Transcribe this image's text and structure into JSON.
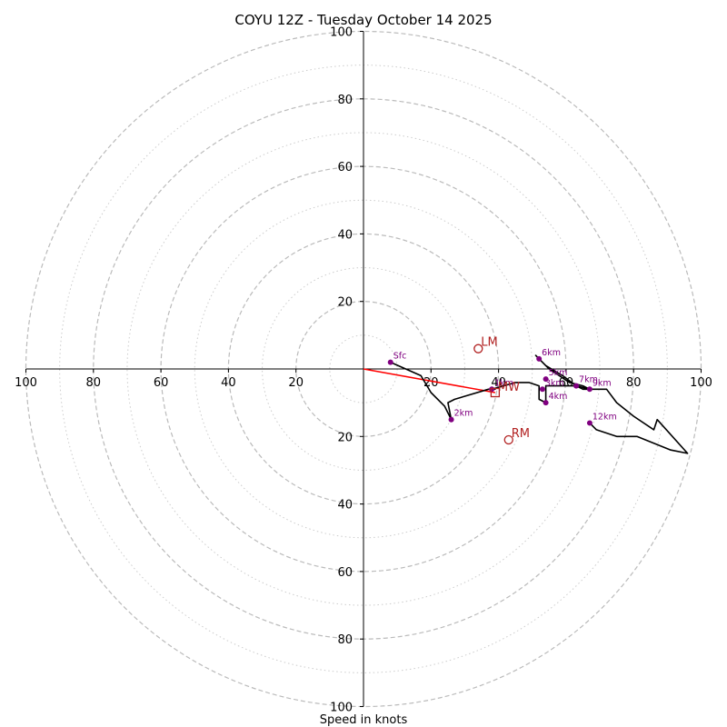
{
  "chart_data": {
    "type": "hodograph",
    "title": "COYU 12Z - Tuesday October 14 2025",
    "xlabel": "Speed in knots",
    "ylim": [
      -100,
      100
    ],
    "xlim": [
      -100,
      100
    ],
    "ring_values": [
      20,
      40,
      60,
      80,
      100
    ],
    "minor_ring_values": [
      10,
      30,
      50,
      70,
      90
    ],
    "x_tick_labels": [
      "100",
      "80",
      "60",
      "40",
      "20",
      "20",
      "40",
      "60",
      "80",
      "100"
    ],
    "x_tick_values": [
      -100,
      -80,
      -60,
      -40,
      -20,
      20,
      40,
      60,
      80,
      100
    ],
    "y_tick_labels": [
      "100",
      "80",
      "60",
      "40",
      "20",
      "20",
      "40",
      "60",
      "80",
      "100"
    ],
    "y_tick_values": [
      100,
      80,
      60,
      40,
      20,
      -20,
      -40,
      -60,
      -80,
      -100
    ],
    "trace": [
      [
        8,
        2
      ],
      [
        17,
        -2
      ],
      [
        20,
        -7
      ],
      [
        24,
        -11
      ],
      [
        26,
        -15
      ],
      [
        25,
        -10
      ],
      [
        27,
        -9
      ],
      [
        37,
        -6
      ],
      [
        39,
        -6
      ],
      [
        38,
        -6
      ],
      [
        45,
        -4
      ],
      [
        49,
        -4
      ],
      [
        52,
        -5
      ],
      [
        52,
        -9
      ],
      [
        54,
        -10
      ],
      [
        54,
        -7
      ],
      [
        54,
        -5
      ],
      [
        60,
        -5
      ],
      [
        63,
        -5
      ],
      [
        65,
        -6
      ],
      [
        67,
        -6
      ],
      [
        65,
        -5
      ],
      [
        61,
        -4
      ],
      [
        58,
        -2
      ],
      [
        55,
        0
      ],
      [
        52,
        3
      ],
      [
        51,
        4
      ],
      [
        54,
        1
      ],
      [
        59,
        -2
      ],
      [
        63,
        -5
      ],
      [
        67,
        -6
      ],
      [
        72,
        -6
      ],
      [
        75,
        -10
      ],
      [
        80,
        -14
      ],
      [
        86,
        -18
      ],
      [
        87,
        -15
      ],
      [
        96,
        -25
      ],
      [
        91,
        -24
      ],
      [
        81,
        -20
      ],
      [
        75,
        -20
      ],
      [
        69,
        -18
      ],
      [
        67,
        -16
      ]
    ],
    "height_markers": [
      {
        "label": "Sfc",
        "u": 8,
        "v": 2
      },
      {
        "label": "1km",
        "u": 38,
        "v": -6
      },
      {
        "label": "2km",
        "u": 26,
        "v": -15
      },
      {
        "label": "3km",
        "u": 53,
        "v": -6
      },
      {
        "label": "4km",
        "u": 54,
        "v": -10
      },
      {
        "label": "5km",
        "u": 54,
        "v": -3
      },
      {
        "label": "6km",
        "u": 52,
        "v": 3
      },
      {
        "label": "7km",
        "u": 63,
        "v": -5
      },
      {
        "label": "9km",
        "u": 67,
        "v": -6
      },
      {
        "label": "12km",
        "u": 67,
        "v": -16
      }
    ],
    "storm_motion": [
      {
        "label": "LM",
        "u": 34,
        "v": 6
      },
      {
        "label": "RM",
        "u": 43,
        "v": -21
      }
    ],
    "mean_wind": {
      "label": "MW",
      "u": 39,
      "v": -7
    },
    "shear_vector": {
      "from": [
        0,
        0
      ],
      "to": [
        39,
        -7
      ]
    },
    "colors": {
      "trace": "#000000",
      "marker": "#800080",
      "storm_motion": "#b22222",
      "shear": "#ff0000",
      "grid": "#bbbbbb",
      "minor_grid": "#cccccc"
    }
  }
}
